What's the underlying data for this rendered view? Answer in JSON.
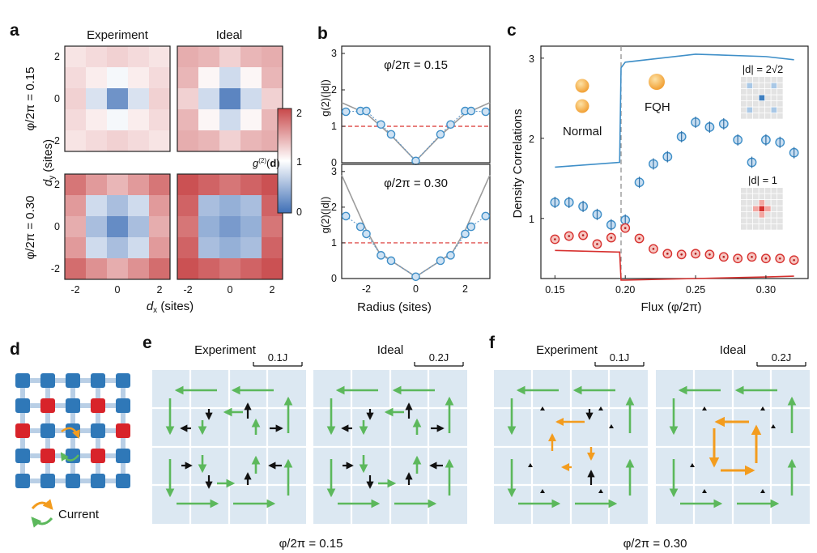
{
  "panel_letters": [
    "a",
    "b",
    "c",
    "d",
    "e",
    "f"
  ],
  "colors": {
    "low": "#3f6fb6",
    "mid": "#ffffff",
    "high": "#c8484a",
    "blue_marker": "#3f8fc8",
    "red_marker": "#d7312f",
    "orange": "#f39c1e",
    "green": "#5cb85c",
    "lattice_bg": "#dce8f2",
    "dashed_red": "#d9322f",
    "gray_line": "#9c9c9c"
  },
  "chart_data": [
    {
      "panel": "a",
      "type": "heatmap",
      "col_titles": [
        "Experiment",
        "Ideal"
      ],
      "row_labels": [
        "φ/2π = 0.15",
        "φ/2π = 0.30"
      ],
      "xlabel": "d_x (sites)",
      "ylabel": "d_y (sites)",
      "x_ticks": [
        "-2",
        "0",
        "2"
      ],
      "y_ticks": [
        "2",
        "0",
        "-2"
      ],
      "colorbar": {
        "label": "g(2)(d)",
        "ticks": [
          "2",
          "1",
          "0"
        ],
        "range": [
          0,
          2
        ]
      },
      "maps": [
        {
          "name": "exp_0.15",
          "values": [
            [
              1.15,
              1.2,
              1.25,
              1.2,
              1.15
            ],
            [
              1.2,
              1.1,
              0.95,
              1.1,
              1.2
            ],
            [
              1.25,
              0.8,
              0.25,
              0.8,
              1.25
            ],
            [
              1.2,
              1.1,
              0.95,
              1.1,
              1.2
            ],
            [
              1.15,
              1.2,
              1.25,
              1.2,
              1.15
            ]
          ]
        },
        {
          "name": "ideal_0.15",
          "values": [
            [
              1.45,
              1.4,
              1.25,
              1.4,
              1.45
            ],
            [
              1.4,
              1.05,
              0.75,
              1.05,
              1.4
            ],
            [
              1.25,
              0.75,
              0.15,
              0.75,
              1.25
            ],
            [
              1.4,
              1.05,
              0.75,
              1.05,
              1.4
            ],
            [
              1.45,
              1.4,
              1.25,
              1.4,
              1.45
            ]
          ]
        },
        {
          "name": "exp_0.30",
          "values": [
            [
              1.75,
              1.55,
              1.4,
              1.55,
              1.75
            ],
            [
              1.55,
              0.75,
              0.55,
              0.75,
              1.55
            ],
            [
              1.45,
              0.55,
              0.2,
              0.55,
              1.45
            ],
            [
              1.55,
              0.75,
              0.55,
              0.75,
              1.55
            ],
            [
              1.8,
              1.6,
              1.45,
              1.6,
              1.8
            ]
          ]
        },
        {
          "name": "ideal_0.30",
          "values": [
            [
              1.95,
              1.85,
              1.75,
              1.85,
              1.95
            ],
            [
              1.85,
              0.55,
              0.45,
              0.55,
              1.85
            ],
            [
              1.75,
              0.45,
              0.3,
              0.45,
              1.75
            ],
            [
              1.85,
              0.55,
              0.45,
              0.55,
              1.85
            ],
            [
              1.95,
              1.85,
              1.75,
              1.85,
              1.95
            ]
          ]
        }
      ]
    },
    {
      "panel": "b",
      "type": "scatter",
      "xlabel": "Radius (sites)",
      "ylabel": "g(2)(|d|)",
      "x_ticks": [
        "-2",
        "0",
        "2"
      ],
      "xlim": [
        -3,
        3
      ],
      "subplots": [
        {
          "label": "φ/2π = 0.15",
          "ylim": [
            0,
            3.2
          ],
          "y_ticks": [
            "3",
            "2",
            "1",
            "0"
          ],
          "reference_line": 1,
          "points": {
            "x": [
              -2.83,
              -2.24,
              -2,
              -1.41,
              -1,
              0,
              1,
              1.41,
              2,
              2.24,
              2.83
            ],
            "y": [
              1.4,
              1.42,
              1.42,
              1.05,
              0.78,
              0.05,
              0.78,
              1.05,
              1.42,
              1.42,
              1.4
            ]
          },
          "ideal_curve": {
            "x": [
              -3,
              -2,
              -1,
              0,
              1,
              2,
              3
            ],
            "y": [
              1.65,
              1.35,
              0.75,
              0.05,
              0.75,
              1.35,
              1.65
            ]
          }
        },
        {
          "label": "φ/2π = 0.30",
          "ylim": [
            0,
            3.2
          ],
          "y_ticks": [
            "3",
            "2",
            "1",
            "0"
          ],
          "reference_line": 1,
          "points": {
            "x": [
              -2.83,
              -2.24,
              -2,
              -1.41,
              -1,
              0,
              1,
              1.41,
              2,
              2.24,
              2.83
            ],
            "y": [
              1.75,
              1.45,
              1.25,
              0.65,
              0.5,
              0.05,
              0.5,
              0.65,
              1.25,
              1.45,
              1.75
            ]
          },
          "ideal_curve": {
            "x": [
              -3,
              -2,
              -1.5,
              -1,
              0,
              1,
              1.5,
              2,
              3
            ],
            "y": [
              2.9,
              1.35,
              0.75,
              0.5,
              0.05,
              0.5,
              0.75,
              1.35,
              2.9
            ]
          }
        }
      ]
    },
    {
      "panel": "c",
      "type": "scatter",
      "xlabel": "Flux (φ/2π)",
      "ylabel": "Density Correlations",
      "xlim": [
        0.14,
        0.33
      ],
      "ylim": [
        0.25,
        3.15
      ],
      "x_ticks": [
        "0.15",
        "0.20",
        "0.25",
        "0.30"
      ],
      "y_ticks": [
        "3",
        "2",
        "1"
      ],
      "transition": 0.197,
      "annotations": [
        "Normal",
        "FQH"
      ],
      "insets": [
        "|d| = 2√2",
        "|d| = 1"
      ],
      "series": [
        {
          "name": "|d| = 2√2 experiment",
          "x": [
            0.15,
            0.16,
            0.17,
            0.18,
            0.19,
            0.2,
            0.21,
            0.22,
            0.23,
            0.24,
            0.25,
            0.26,
            0.27,
            0.28,
            0.29,
            0.3,
            0.31,
            0.32
          ],
          "y": [
            1.2,
            1.2,
            1.15,
            1.05,
            0.92,
            0.98,
            1.45,
            1.68,
            1.77,
            2.02,
            2.2,
            2.14,
            2.18,
            1.98,
            1.7,
            1.98,
            1.95,
            1.82
          ]
        },
        {
          "name": "|d| = 1 experiment",
          "x": [
            0.15,
            0.16,
            0.17,
            0.18,
            0.19,
            0.2,
            0.21,
            0.22,
            0.23,
            0.24,
            0.25,
            0.26,
            0.27,
            0.28,
            0.29,
            0.3,
            0.31,
            0.32
          ],
          "y": [
            0.74,
            0.78,
            0.79,
            0.68,
            0.76,
            0.88,
            0.75,
            0.62,
            0.56,
            0.55,
            0.56,
            0.55,
            0.52,
            0.5,
            0.52,
            0.5,
            0.5,
            0.48
          ]
        },
        {
          "name": "|d| = 2√2 ideal",
          "x": [
            0.15,
            0.196,
            0.197,
            0.2,
            0.25,
            0.3,
            0.32
          ],
          "y": [
            1.64,
            1.7,
            2.88,
            2.95,
            3.05,
            3.02,
            2.98
          ]
        },
        {
          "name": "|d| = 1 ideal",
          "x": [
            0.15,
            0.196,
            0.197,
            0.2,
            0.25,
            0.3,
            0.32
          ],
          "y": [
            0.6,
            0.58,
            0.23,
            0.23,
            0.25,
            0.27,
            0.28
          ]
        }
      ]
    }
  ],
  "panel_d": {
    "legend_label": "Current",
    "site_colors": [
      [
        0,
        0,
        0,
        0,
        0
      ],
      [
        0,
        1,
        0,
        1,
        0
      ],
      [
        1,
        0,
        0,
        0,
        1
      ],
      [
        0,
        1,
        0,
        1,
        0
      ],
      [
        0,
        0,
        0,
        0,
        0
      ]
    ]
  },
  "panel_e": {
    "titles": [
      "Experiment",
      "Ideal"
    ],
    "scales": [
      "0.1J",
      "0.2J"
    ],
    "caption": "φ/2π = 0.15"
  },
  "panel_f": {
    "titles": [
      "Experiment",
      "Ideal"
    ],
    "scales": [
      "0.1J",
      "0.2J"
    ],
    "caption": "φ/2π = 0.30"
  }
}
